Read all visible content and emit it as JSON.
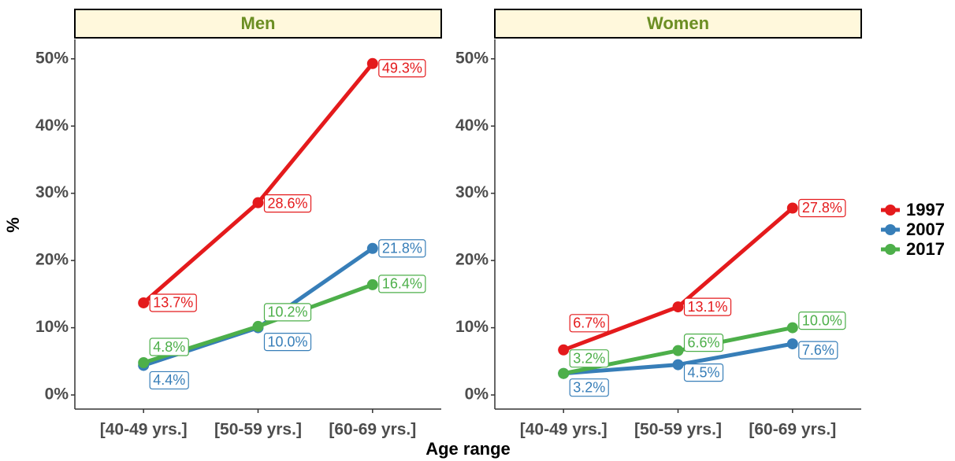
{
  "chart_data": [
    {
      "type": "line",
      "title": "Men",
      "xlabel": "Age range",
      "ylabel": "%",
      "categories": [
        "[40-49 yrs.]",
        "[50-59 yrs.]",
        "[60-69 yrs.]"
      ],
      "series": [
        {
          "name": "1997",
          "color": "#e41a1c",
          "values": [
            13.7,
            28.6,
            49.3
          ],
          "value_labels": [
            "13.7%",
            "28.6%",
            "49.3%"
          ]
        },
        {
          "name": "2007",
          "color": "#377eb8",
          "values": [
            4.4,
            10.0,
            21.8
          ],
          "value_labels": [
            "4.4%",
            "10.0%",
            "21.8%"
          ]
        },
        {
          "name": "2017",
          "color": "#4daf4a",
          "values": [
            4.8,
            10.2,
            16.4
          ],
          "value_labels": [
            "4.8%",
            "10.2%",
            "16.4%"
          ]
        }
      ],
      "ylim": [
        -2.1,
        52.9
      ],
      "yticks": [
        {
          "value": 0,
          "label": "0%"
        },
        {
          "value": 10,
          "label": "10%"
        },
        {
          "value": 20,
          "label": "20%"
        },
        {
          "value": 30,
          "label": "30%"
        },
        {
          "value": 40,
          "label": "40%"
        },
        {
          "value": 50,
          "label": "50%"
        }
      ]
    },
    {
      "type": "line",
      "title": "Women",
      "categories": [
        "[40-49 yrs.]",
        "[50-59 yrs.]",
        "[60-69 yrs.]"
      ],
      "series": [
        {
          "color": "#e41a1c",
          "values": [
            6.7,
            13.1,
            27.8
          ],
          "value_labels": [
            "6.7%",
            "13.1%",
            "27.8%"
          ]
        },
        {
          "color": "#377eb8",
          "values": [
            3.2,
            4.5,
            7.6
          ],
          "value_labels": [
            "3.2%",
            "4.5%",
            "7.6%"
          ]
        },
        {
          "color": "#4daf4a",
          "values": [
            3.2,
            6.6,
            10.0
          ],
          "value_labels": [
            "3.2%",
            "6.6%",
            "10.0%"
          ]
        }
      ],
      "ylim": [
        -2.1,
        52.9
      ],
      "yticks": [
        {
          "value": 0,
          "label": "0%"
        },
        {
          "value": 10,
          "label": "10%"
        },
        {
          "value": 20,
          "label": "20%"
        },
        {
          "value": 30,
          "label": "30%"
        },
        {
          "value": 40,
          "label": "40%"
        },
        {
          "value": 50,
          "label": "50%"
        }
      ]
    }
  ]
}
